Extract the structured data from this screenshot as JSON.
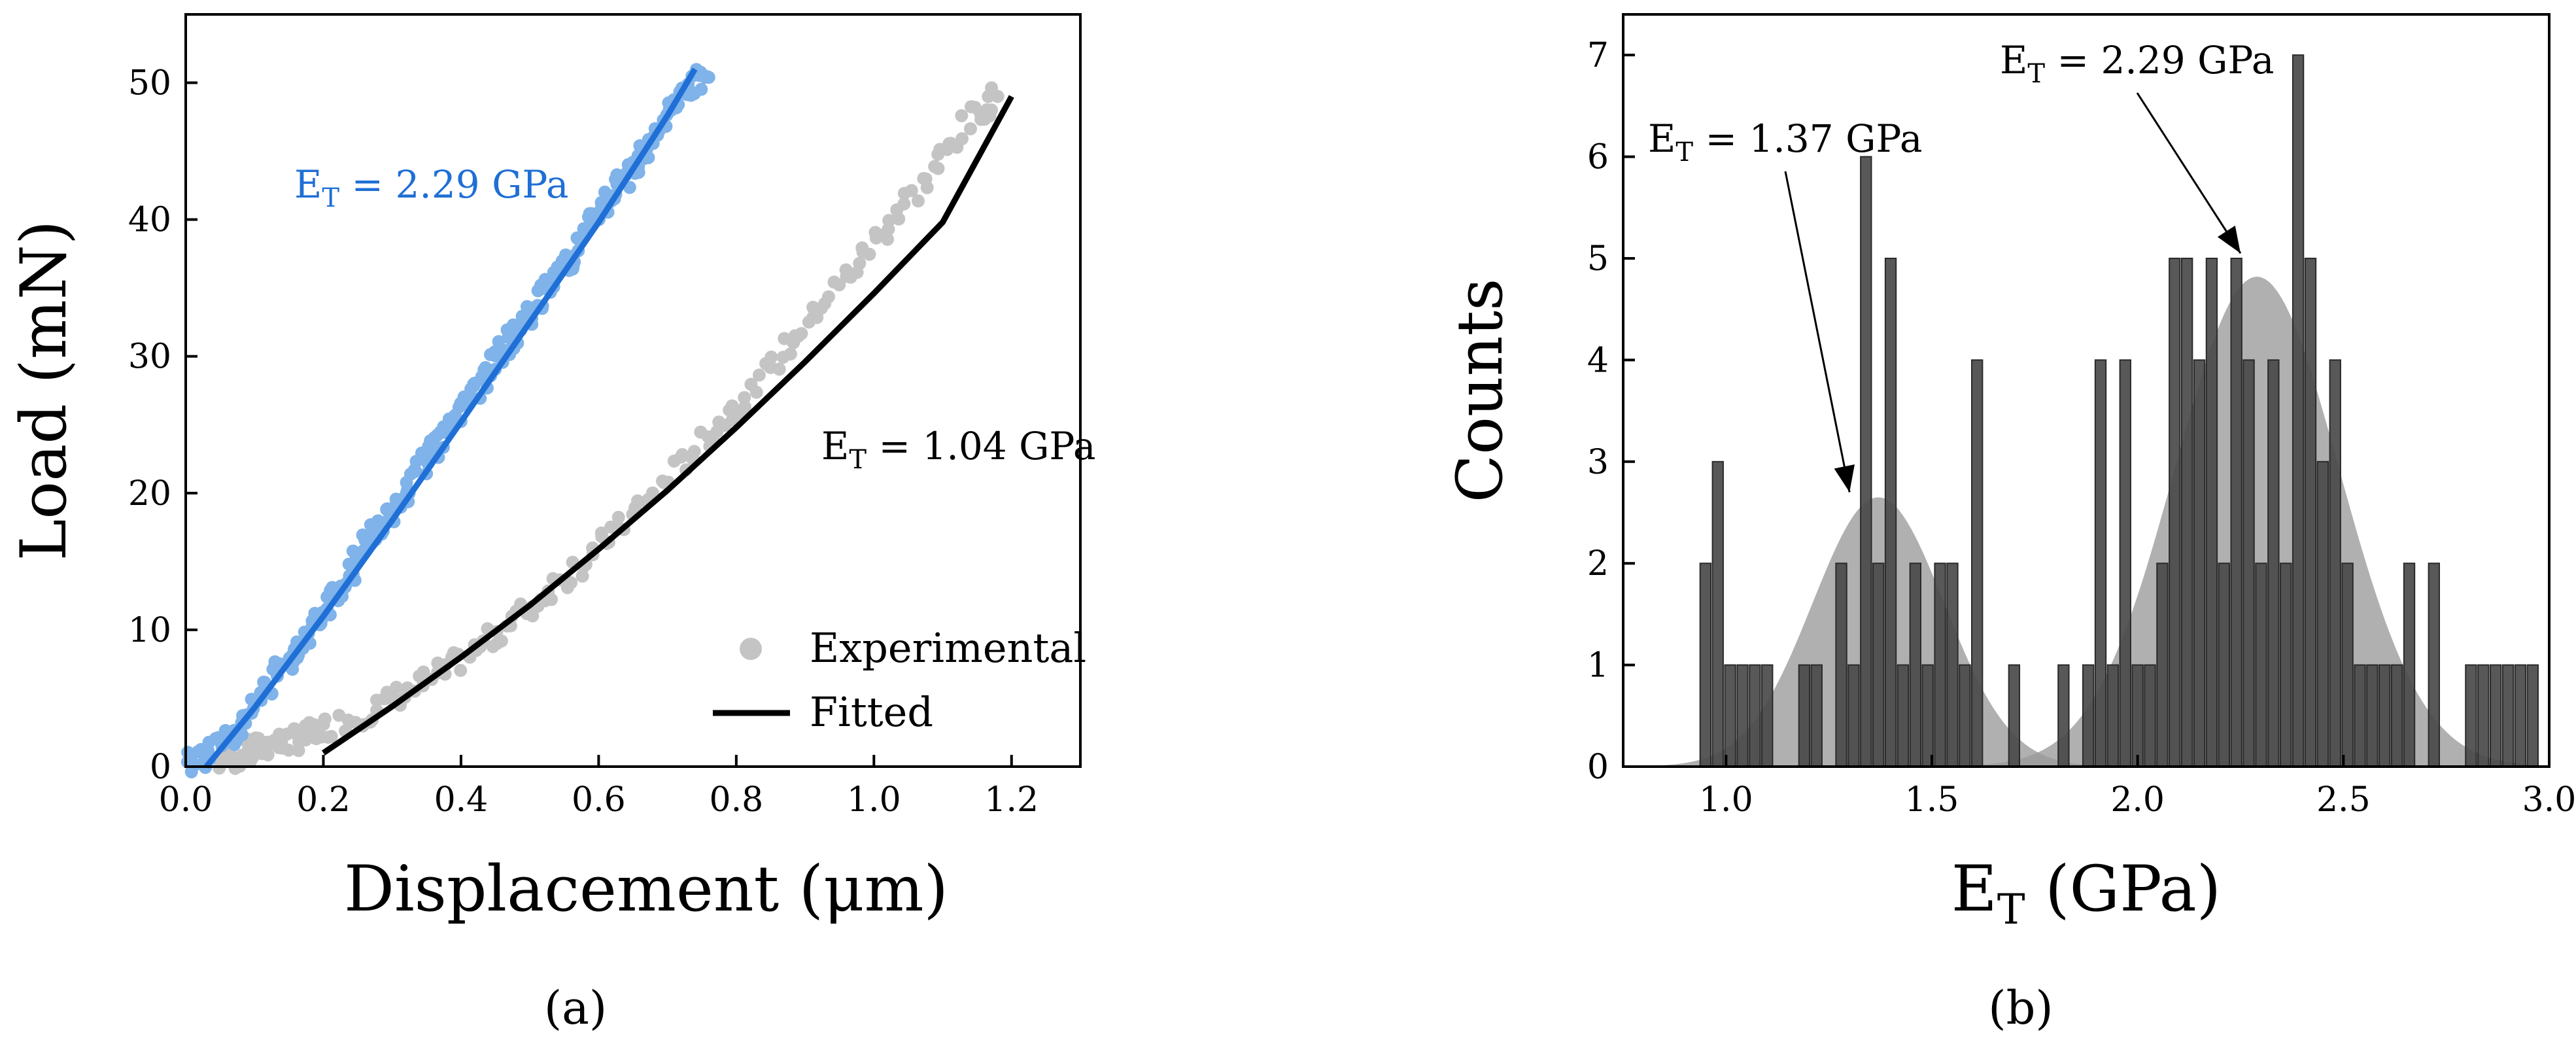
{
  "panel_labels": {
    "a": "(a)",
    "b": "(b)"
  },
  "colors": {
    "blue": "#1f6fd6",
    "blue_points": "#7fb3e9",
    "gray_points": "#c4c4c4",
    "fit_black": "#000000",
    "bar_fill": "#4a4a4a",
    "gauss_fill": "#9a9a9a"
  },
  "chart_data": [
    {
      "type": "scatter",
      "xlabel": "Displacement (μm)",
      "ylabel": "Load (mN)",
      "xlim": [
        0.0,
        1.3
      ],
      "ylim": [
        0,
        55
      ],
      "xticks": [
        0.0,
        0.2,
        0.4,
        0.6,
        0.8,
        1.0,
        1.2
      ],
      "xtick_labels": [
        "0.0",
        "0.2",
        "0.4",
        "0.6",
        "0.8",
        "1.0",
        "1.2"
      ],
      "yticks": [
        0,
        10,
        20,
        30,
        40,
        50
      ],
      "ytick_labels": [
        "0",
        "10",
        "20",
        "30",
        "40",
        "50"
      ],
      "series": [
        {
          "name": "blue-experimental",
          "kind": "scatter",
          "color": "#7fb3e9",
          "points": [
            [
              0.0,
              0.2
            ],
            [
              0.03,
              0.8
            ],
            [
              0.05,
              1.8
            ],
            [
              0.08,
              3.2
            ],
            [
              0.1,
              4.5
            ],
            [
              0.12,
              6.0
            ],
            [
              0.14,
              7.6
            ],
            [
              0.16,
              8.4
            ],
            [
              0.18,
              9.8
            ],
            [
              0.2,
              11.4
            ],
            [
              0.22,
              12.9
            ],
            [
              0.24,
              14.4
            ],
            [
              0.26,
              16.1
            ],
            [
              0.28,
              17.4
            ],
            [
              0.3,
              19.0
            ],
            [
              0.32,
              20.2
            ],
            [
              0.34,
              21.9
            ],
            [
              0.36,
              23.0
            ],
            [
              0.38,
              24.6
            ],
            [
              0.4,
              25.9
            ],
            [
              0.42,
              27.5
            ],
            [
              0.44,
              28.8
            ],
            [
              0.46,
              30.4
            ],
            [
              0.48,
              31.6
            ],
            [
              0.5,
              33.4
            ],
            [
              0.52,
              34.5
            ],
            [
              0.54,
              36.1
            ],
            [
              0.56,
              37.2
            ],
            [
              0.58,
              38.9
            ],
            [
              0.6,
              40.2
            ],
            [
              0.62,
              41.8
            ],
            [
              0.64,
              43.0
            ],
            [
              0.66,
              44.7
            ],
            [
              0.68,
              46.0
            ],
            [
              0.7,
              47.6
            ],
            [
              0.72,
              48.9
            ],
            [
              0.74,
              50.1
            ],
            [
              0.76,
              50.4
            ]
          ]
        },
        {
          "name": "blue-fit",
          "kind": "line",
          "color": "#1f6fd6",
          "points": [
            [
              0.03,
              0.0
            ],
            [
              0.1,
              4.3
            ],
            [
              0.2,
              11.0
            ],
            [
              0.3,
              18.0
            ],
            [
              0.4,
              25.2
            ],
            [
              0.5,
              32.5
            ],
            [
              0.6,
              39.8
            ],
            [
              0.7,
              47.6
            ],
            [
              0.74,
              51.0
            ]
          ]
        },
        {
          "name": "Experimental",
          "kind": "scatter",
          "color": "#c4c4c4",
          "points": [
            [
              0.05,
              0.3
            ],
            [
              0.08,
              0.8
            ],
            [
              0.1,
              1.2
            ],
            [
              0.12,
              1.6
            ],
            [
              0.15,
              1.9
            ],
            [
              0.18,
              2.2
            ],
            [
              0.2,
              2.8
            ],
            [
              0.25,
              3.6
            ],
            [
              0.3,
              4.8
            ],
            [
              0.35,
              6.2
            ],
            [
              0.4,
              7.8
            ],
            [
              0.45,
              9.6
            ],
            [
              0.5,
              11.6
            ],
            [
              0.55,
              13.8
            ],
            [
              0.6,
              16.0
            ],
            [
              0.65,
              18.5
            ],
            [
              0.7,
              21.0
            ],
            [
              0.75,
              23.6
            ],
            [
              0.8,
              26.4
            ],
            [
              0.85,
              29.2
            ],
            [
              0.9,
              32.1
            ],
            [
              0.95,
              35.2
            ],
            [
              1.0,
              38.3
            ],
            [
              1.05,
              41.4
            ],
            [
              1.1,
              44.6
            ],
            [
              1.15,
              47.8
            ],
            [
              1.18,
              49.0
            ]
          ]
        },
        {
          "name": "Fitted",
          "kind": "line",
          "color": "#000000",
          "points": [
            [
              0.2,
              1.0
            ],
            [
              0.3,
              4.4
            ],
            [
              0.4,
              8.0
            ],
            [
              0.5,
              11.8
            ],
            [
              0.6,
              15.9
            ],
            [
              0.7,
              20.2
            ],
            [
              0.8,
              24.8
            ],
            [
              0.9,
              29.6
            ],
            [
              1.0,
              34.6
            ],
            [
              1.1,
              39.8
            ],
            [
              1.2,
              49.0
            ]
          ]
        }
      ],
      "annotations": [
        {
          "text_main": "E",
          "text_sub": "T",
          "text_rest": " = 2.29 GPa",
          "color": "#1f6fd6"
        },
        {
          "text_main": "E",
          "text_sub": "T",
          "text_rest": " = 1.04 GPa",
          "color": "#000000"
        }
      ],
      "legend": {
        "position": "bottom-right",
        "entries": [
          {
            "label": "Experimental",
            "marker": "circle",
            "color": "#c4c4c4"
          },
          {
            "label": "Fitted",
            "marker": "line",
            "color": "#000000"
          }
        ]
      }
    },
    {
      "type": "bar",
      "xlabel_main": "E",
      "xlabel_sub": "T",
      "xlabel_rest": " (GPa)",
      "ylabel": "Counts",
      "xlim": [
        0.75,
        3.0
      ],
      "ylim": [
        0,
        7.4
      ],
      "xticks": [
        1.0,
        1.5,
        2.0,
        2.5,
        3.0
      ],
      "xtick_labels": [
        "1.0",
        "1.5",
        "2.0",
        "2.5",
        "3.0"
      ],
      "yticks": [
        0,
        1,
        2,
        3,
        4,
        5,
        6,
        7
      ],
      "ytick_labels": [
        "0",
        "1",
        "2",
        "3",
        "4",
        "5",
        "6",
        "7"
      ],
      "bin_width": 0.03,
      "bars": [
        {
          "x": 0.95,
          "count": 2
        },
        {
          "x": 0.98,
          "count": 3
        },
        {
          "x": 1.01,
          "count": 1
        },
        {
          "x": 1.04,
          "count": 1
        },
        {
          "x": 1.07,
          "count": 1
        },
        {
          "x": 1.1,
          "count": 1
        },
        {
          "x": 1.19,
          "count": 1
        },
        {
          "x": 1.22,
          "count": 1
        },
        {
          "x": 1.28,
          "count": 2
        },
        {
          "x": 1.31,
          "count": 1
        },
        {
          "x": 1.34,
          "count": 6
        },
        {
          "x": 1.37,
          "count": 2
        },
        {
          "x": 1.4,
          "count": 5
        },
        {
          "x": 1.43,
          "count": 1
        },
        {
          "x": 1.46,
          "count": 2
        },
        {
          "x": 1.49,
          "count": 1
        },
        {
          "x": 1.52,
          "count": 2
        },
        {
          "x": 1.55,
          "count": 2
        },
        {
          "x": 1.58,
          "count": 1
        },
        {
          "x": 1.61,
          "count": 4
        },
        {
          "x": 1.7,
          "count": 1
        },
        {
          "x": 1.82,
          "count": 1
        },
        {
          "x": 1.88,
          "count": 1
        },
        {
          "x": 1.91,
          "count": 4
        },
        {
          "x": 1.94,
          "count": 1
        },
        {
          "x": 1.97,
          "count": 4
        },
        {
          "x": 2.0,
          "count": 1
        },
        {
          "x": 2.03,
          "count": 1
        },
        {
          "x": 2.06,
          "count": 2
        },
        {
          "x": 2.09,
          "count": 5
        },
        {
          "x": 2.12,
          "count": 5
        },
        {
          "x": 2.15,
          "count": 4
        },
        {
          "x": 2.18,
          "count": 5
        },
        {
          "x": 2.21,
          "count": 2
        },
        {
          "x": 2.24,
          "count": 5
        },
        {
          "x": 2.27,
          "count": 4
        },
        {
          "x": 2.3,
          "count": 2
        },
        {
          "x": 2.33,
          "count": 4
        },
        {
          "x": 2.36,
          "count": 2
        },
        {
          "x": 2.39,
          "count": 7
        },
        {
          "x": 2.42,
          "count": 5
        },
        {
          "x": 2.45,
          "count": 3
        },
        {
          "x": 2.48,
          "count": 4
        },
        {
          "x": 2.51,
          "count": 2
        },
        {
          "x": 2.54,
          "count": 1
        },
        {
          "x": 2.57,
          "count": 1
        },
        {
          "x": 2.6,
          "count": 1
        },
        {
          "x": 2.63,
          "count": 1
        },
        {
          "x": 2.66,
          "count": 2
        },
        {
          "x": 2.72,
          "count": 2
        },
        {
          "x": 2.81,
          "count": 1
        },
        {
          "x": 2.84,
          "count": 1
        },
        {
          "x": 2.87,
          "count": 1
        },
        {
          "x": 2.9,
          "count": 1
        },
        {
          "x": 2.93,
          "count": 1
        },
        {
          "x": 2.96,
          "count": 1
        }
      ],
      "gaussians": [
        {
          "mean": 1.37,
          "sigma": 0.16,
          "peak": 2.65
        },
        {
          "mean": 2.29,
          "sigma": 0.2,
          "peak": 4.82
        }
      ],
      "annotations": [
        {
          "text_main": "E",
          "text_sub": "T",
          "text_rest": " = 1.37 GPa",
          "arrow_to": [
            1.3,
            2.7
          ]
        },
        {
          "text_main": "E",
          "text_sub": "T",
          "text_rest": " = 2.29 GPa",
          "arrow_to": [
            2.25,
            5.05
          ]
        }
      ]
    }
  ]
}
